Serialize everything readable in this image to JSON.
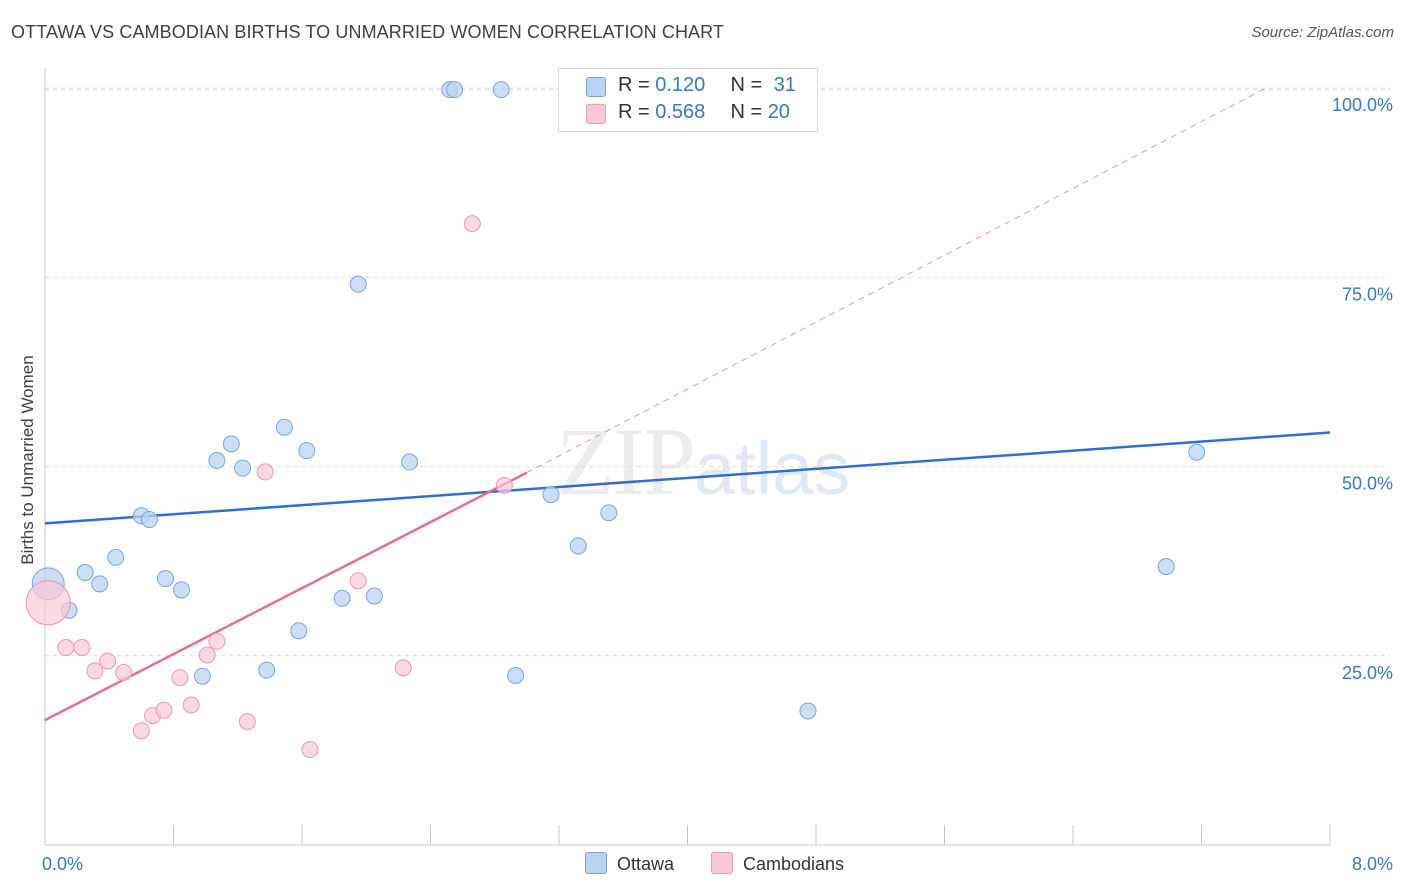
{
  "header": {
    "title": "OTTAWA VS CAMBODIAN BIRTHS TO UNMARRIED WOMEN CORRELATION CHART",
    "source": "Source: ZipAtlas.com"
  },
  "watermark": {
    "zip": "ZIP",
    "atlas": "atlas"
  },
  "legend": {
    "rows": [
      {
        "r_label": "R = ",
        "r_value": "0.120",
        "n_label": "N = ",
        "n_value": "31",
        "color": "#b9d3f2"
      },
      {
        "r_label": "R = ",
        "r_value": "0.568",
        "n_label": "N = ",
        "n_value": "20",
        "color": "#f9c7d5"
      }
    ]
  },
  "bottom_legend": {
    "ottawa": "Ottawa",
    "cambodians": "Cambodians"
  },
  "colors": {
    "ottawa_fill": "#b9d3f2",
    "ottawa_stroke": "#7aa6dd",
    "ottawa_line": "#2f6fcf",
    "camb_fill": "#f9c7d5",
    "camb_stroke": "#eb9ab3",
    "camb_line": "#e36f97",
    "tick_text": "#3a76c7"
  },
  "chart_data": {
    "type": "scatter",
    "title": "OTTAWA VS CAMBODIAN BIRTHS TO UNMARRIED WOMEN CORRELATION CHART",
    "xlabel": "",
    "ylabel": "Births to Unmarried Women",
    "xlim": [
      0,
      8
    ],
    "ylim": [
      0,
      102
    ],
    "x_tick_labels": [
      "0.0%",
      "8.0%"
    ],
    "y_ticks": [
      25,
      50,
      75,
      100
    ],
    "y_tick_labels": [
      "25.0%",
      "50.0%",
      "75.0%",
      "100.0%"
    ],
    "grid": true,
    "legend_position": "top-center",
    "series": [
      {
        "name": "Ottawa",
        "r": 0.12,
        "n": 31,
        "trend": {
          "x": [
            0,
            8
          ],
          "y": [
            42.5,
            54.5
          ]
        },
        "points": [
          {
            "x": 0.02,
            "y": 34.5,
            "big": true
          },
          {
            "x": 0.15,
            "y": 31
          },
          {
            "x": 0.25,
            "y": 36
          },
          {
            "x": 0.34,
            "y": 34.5
          },
          {
            "x": 0.44,
            "y": 38
          },
          {
            "x": 0.6,
            "y": 43.5
          },
          {
            "x": 0.65,
            "y": 43
          },
          {
            "x": 0.75,
            "y": 35.2
          },
          {
            "x": 0.85,
            "y": 33.7
          },
          {
            "x": 0.98,
            "y": 22.3
          },
          {
            "x": 1.07,
            "y": 50.8
          },
          {
            "x": 1.16,
            "y": 53
          },
          {
            "x": 1.23,
            "y": 49.8
          },
          {
            "x": 1.38,
            "y": 23.1
          },
          {
            "x": 1.49,
            "y": 55.2
          },
          {
            "x": 1.58,
            "y": 28.3
          },
          {
            "x": 1.63,
            "y": 52.1
          },
          {
            "x": 1.85,
            "y": 32.6
          },
          {
            "x": 1.95,
            "y": 74.1
          },
          {
            "x": 2.05,
            "y": 32.9
          },
          {
            "x": 2.27,
            "y": 50.6
          },
          {
            "x": 2.52,
            "y": 99.8
          },
          {
            "x": 2.55,
            "y": 99.8
          },
          {
            "x": 2.84,
            "y": 99.8
          },
          {
            "x": 2.93,
            "y": 22.4
          },
          {
            "x": 3.15,
            "y": 46.3
          },
          {
            "x": 3.32,
            "y": 39.5
          },
          {
            "x": 3.51,
            "y": 43.9
          },
          {
            "x": 4.75,
            "y": 17.7
          },
          {
            "x": 6.98,
            "y": 36.8
          },
          {
            "x": 7.17,
            "y": 51.9
          }
        ]
      },
      {
        "name": "Cambodians",
        "r": 0.568,
        "n": 20,
        "trend": {
          "x": [
            0,
            3.0
          ],
          "y": [
            16.5,
            49.2
          ]
        },
        "trend_extended": {
          "x": [
            3.0,
            7.6
          ],
          "y": [
            49.2,
            100
          ]
        },
        "points": [
          {
            "x": 0.02,
            "y": 32,
            "big": true
          },
          {
            "x": 0.13,
            "y": 26.1
          },
          {
            "x": 0.23,
            "y": 26.1
          },
          {
            "x": 0.31,
            "y": 23
          },
          {
            "x": 0.39,
            "y": 24.3
          },
          {
            "x": 0.49,
            "y": 22.8
          },
          {
            "x": 0.6,
            "y": 15.1
          },
          {
            "x": 0.67,
            "y": 17.1
          },
          {
            "x": 0.74,
            "y": 17.8
          },
          {
            "x": 0.84,
            "y": 22.1
          },
          {
            "x": 0.91,
            "y": 18.5
          },
          {
            "x": 1.01,
            "y": 25.1
          },
          {
            "x": 1.07,
            "y": 26.9
          },
          {
            "x": 1.26,
            "y": 16.3
          },
          {
            "x": 1.37,
            "y": 49.3
          },
          {
            "x": 1.65,
            "y": 12.6
          },
          {
            "x": 1.95,
            "y": 34.9
          },
          {
            "x": 2.23,
            "y": 23.4
          },
          {
            "x": 2.66,
            "y": 82.1
          },
          {
            "x": 2.86,
            "y": 47.5
          }
        ]
      }
    ]
  }
}
